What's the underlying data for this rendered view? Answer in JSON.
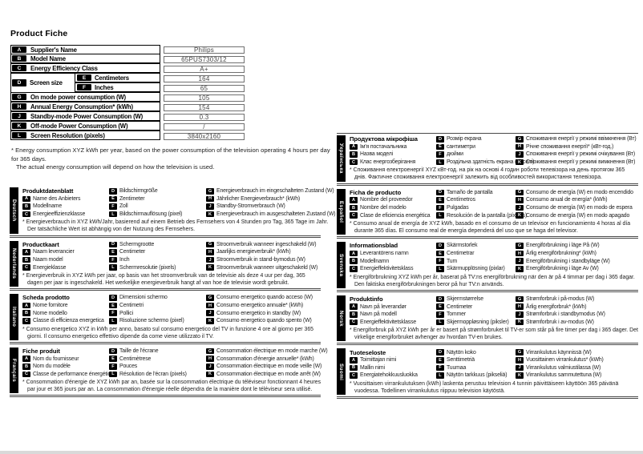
{
  "page_title": "Product Fiche",
  "fiche_table": {
    "rows": [
      {
        "key": "A",
        "label": "Supplier's Name",
        "value": "Philips"
      },
      {
        "key": "B",
        "label": "Model Name",
        "value": "65PUS7303/12"
      },
      {
        "key": "C",
        "label": "Energy Efficiency Class",
        "value": "A+"
      },
      {
        "key": "D",
        "label": "Screen size",
        "sub": [
          {
            "key": "E",
            "label": "Centimeters",
            "value": "164"
          },
          {
            "key": "F",
            "label": "Inches",
            "value": "65"
          }
        ]
      },
      {
        "key": "G",
        "label": "On mode power consumption (W)",
        "value": "105"
      },
      {
        "key": "H",
        "label": "Annual Energy Consumption* (kWh)",
        "value": "154"
      },
      {
        "key": "J",
        "label": "Standby-mode Power Consumption (W)",
        "value": "0.3"
      },
      {
        "key": "K",
        "label": "Off-mode Power Consumption (W)",
        "value": "/"
      },
      {
        "key": "L",
        "label": "Screen Resolution (pixels)",
        "value": "3840x2160"
      }
    ]
  },
  "fiche_footnote": {
    "line1": "* Energy consumption XYZ kWh per year, based on the power consumption of the television operating 4 hours per day for 365 days.",
    "line2": "The actual energy consumption will depend on how the television is used."
  },
  "languages": [
    {
      "name": "Deutsch",
      "column": "left",
      "title": "Produktdatenblatt",
      "col1": [
        {
          "k": "A",
          "t": "Name des Anbieters"
        },
        {
          "k": "B",
          "t": "Modellname"
        },
        {
          "k": "C",
          "t": "Energieeffizienzklasse"
        }
      ],
      "col2": [
        {
          "k": "D",
          "t": "Bildschirmgröße"
        },
        {
          "k": "E",
          "t": "Zentimeter"
        },
        {
          "k": "F",
          "t": "Zoll"
        },
        {
          "k": "L",
          "t": "Bildschirmauflösung (pixel)"
        }
      ],
      "col3": [
        {
          "k": "G",
          "t": "Energieverbrauch im eingeschalteten Zustand (W)"
        },
        {
          "k": "H",
          "t": "Jährlicher Energieverbrauch* (kWh)"
        },
        {
          "k": "J",
          "t": "Standby-Stromverbrauch (W)"
        },
        {
          "k": "K",
          "t": "Energieverbrauch im ausgeschalteten Zustand (W)"
        }
      ],
      "footnote": "* Energieverbrauch in XYZ kWh/Jahr, basierend auf einem Betrieb des Fernsehers von 4 Stunden pro Tag, 365 Tage im Jahr. Der tatsächliche Wert ist abhängig von der Nutzung des Fernsehers."
    },
    {
      "name": "Nederlands",
      "column": "left",
      "title": "Productkaart",
      "col1": [
        {
          "k": "A",
          "t": "Naam leverancier"
        },
        {
          "k": "B",
          "t": "Naam model"
        },
        {
          "k": "C",
          "t": "Energieklasse"
        }
      ],
      "col2": [
        {
          "k": "D",
          "t": "Schermgrootte"
        },
        {
          "k": "E",
          "t": "Centimeter"
        },
        {
          "k": "F",
          "t": "Inch"
        },
        {
          "k": "L",
          "t": "Schermresolutie (pixels)"
        }
      ],
      "col3": [
        {
          "k": "G",
          "t": "Stroomverbruik wanneer ingeschakeld (W)"
        },
        {
          "k": "H",
          "t": "Jaarlijks energieverbruik* (kWh)"
        },
        {
          "k": "J",
          "t": "Stroomverbruik in stand-bymodus (W)"
        },
        {
          "k": "K",
          "t": "Stroomverbruik wanneer uitgeschakeld (W)"
        }
      ],
      "footnote": "* Energieverbruik in XYZ kWh per jaar, op basis van het stroomverbruik van de televisie als deze 4 uur per dag, 365 dagen per jaar is ingeschakeld. Het werkelijke energieverbruik hangt af van hoe de televisie wordt gebruikt."
    },
    {
      "name": "Italiano",
      "column": "left",
      "title": "Scheda prodotto",
      "col1": [
        {
          "k": "A",
          "t": "Nome fornitore"
        },
        {
          "k": "B",
          "t": "Nome modello"
        },
        {
          "k": "C",
          "t": "Classe di efficienza energetica"
        }
      ],
      "col2": [
        {
          "k": "D",
          "t": "Dimensioni schermo"
        },
        {
          "k": "E",
          "t": "Centimetri"
        },
        {
          "k": "F",
          "t": "Pollici"
        },
        {
          "k": "L",
          "t": "Risoluzione schermo (pixel)"
        }
      ],
      "col3": [
        {
          "k": "G",
          "t": "Consumo energetico quando acceso (W)"
        },
        {
          "k": "H",
          "t": "Consumo energetico annuale* (kWh)"
        },
        {
          "k": "J",
          "t": "Consumo energetico in standby (W)"
        },
        {
          "k": "K",
          "t": "Consumo energetico quando spento (W)"
        }
      ],
      "footnote": "* Consumo energetico XYZ in kWh per anno, basato sul consumo energetico del TV in funzione 4 ore al giorno per 365 giorni. Il consumo energetico effettivo dipende da come viene utilizzato il TV."
    },
    {
      "name": "Français",
      "column": "left",
      "title": "Fiche produit",
      "col1": [
        {
          "k": "A",
          "t": "Nom du fournisseur"
        },
        {
          "k": "B",
          "t": "Nom du modèle"
        },
        {
          "k": "C",
          "t": "Classe de performance énergétique"
        }
      ],
      "col2": [
        {
          "k": "D",
          "t": "Taille de l'écrane"
        },
        {
          "k": "E",
          "t": "Centimètrese"
        },
        {
          "k": "F",
          "t": "Pouces"
        },
        {
          "k": "L",
          "t": "Résolution de l'écran (pixels)"
        }
      ],
      "col3": [
        {
          "k": "G",
          "t": "Consommation électrique en mode marche (W)"
        },
        {
          "k": "H",
          "t": "Consommation d'énergie annuelle* (kWh)"
        },
        {
          "k": "J",
          "t": "Consommation électrique en mode veille (W)"
        },
        {
          "k": "K",
          "t": "Consommation électrique en mode arrêt (W)"
        }
      ],
      "footnote": "* Consommation d'énergie de XYZ kWh par an, basée sur la consommation électrique du téléviseur fonctionnant 4 heures par jour et 365 jours par an. La consommation d'énergie réelle dépendra de la manière dont le téléviseur sera utilisé."
    },
    {
      "name": "Українська",
      "column": "right",
      "title": "Продуктова мікрофіша",
      "col1": [
        {
          "k": "A",
          "t": "Ім'я постачальника"
        },
        {
          "k": "B",
          "t": "Назва моделі"
        },
        {
          "k": "C",
          "t": "Клас енергозберігання"
        }
      ],
      "col2": [
        {
          "k": "D",
          "t": "Розмір екрана"
        },
        {
          "k": "E",
          "t": "сантиметри"
        },
        {
          "k": "F",
          "t": "дюйми"
        },
        {
          "k": "L",
          "t": "Роздільна здатність екрана (пікселі)"
        }
      ],
      "col3": [
        {
          "k": "G",
          "t": "Споживання енергії у режимі ввімкнення (Вт)"
        },
        {
          "k": "H",
          "t": "Річне споживання енергії* (кВт-год.)"
        },
        {
          "k": "J",
          "t": "Споживання енергії у режимі очікування (Вт)"
        },
        {
          "k": "K",
          "t": "Споживання енергії у режимі вимкнення (Вт)"
        }
      ],
      "footnote": "* Споживання електроенергії XYZ кВт-год. на рік на основі 4 годин роботи телевізора на день протягом 365 днів. Фактичне споживання електроенергії залежить від особливостей використання телевізора."
    },
    {
      "name": "Español",
      "column": "right",
      "title": "Ficha de producto",
      "col1": [
        {
          "k": "A",
          "t": "Nombre del proveedor"
        },
        {
          "k": "B",
          "t": "Nombre del modelo"
        },
        {
          "k": "C",
          "t": "Clase de eficiencia energética"
        }
      ],
      "col2": [
        {
          "k": "D",
          "t": "Tamaño de pantalla"
        },
        {
          "k": "E",
          "t": "Centímetros"
        },
        {
          "k": "F",
          "t": "Pulgadas"
        },
        {
          "k": "L",
          "t": "Resolución de la pantalla (píxeles)"
        }
      ],
      "col3": [
        {
          "k": "G",
          "t": "Consumo de energía (W) en modo encendido"
        },
        {
          "k": "H",
          "t": "Consumo anual de energía* (kWh)"
        },
        {
          "k": "J",
          "t": "Consumo de energía (W) en modo de espera"
        },
        {
          "k": "K",
          "t": "Consumo de energía (W) en modo apagado"
        }
      ],
      "footnote": "* Consumo anual de energía de XYZ kWh, basado en el consumo de un televisor en funcionamiento 4 horas al día durante 365 días. El consumo real de energía dependerá del uso que se haga del televisor."
    },
    {
      "name": "Svenska",
      "column": "right",
      "title": "Informationsblad",
      "col1": [
        {
          "k": "A",
          "t": "Leverantörens namn"
        },
        {
          "k": "B",
          "t": "Modellnamn"
        },
        {
          "k": "C",
          "t": "Energieffektivitetsklass"
        }
      ],
      "col2": [
        {
          "k": "D",
          "t": "Skärmstorlek"
        },
        {
          "k": "E",
          "t": "Centimetrar"
        },
        {
          "k": "F",
          "t": "Tum"
        },
        {
          "k": "L",
          "t": "Skärmupplösning (pixlar)"
        }
      ],
      "col3": [
        {
          "k": "G",
          "t": "Energiförbrukning i läge På (W)"
        },
        {
          "k": "H",
          "t": "Årlig energiförbrukning* (kWh)"
        },
        {
          "k": "J",
          "t": "Energiförbrukning i standbyläge (W)"
        },
        {
          "k": "K",
          "t": "Energiförbrukning i läge Av (W)"
        }
      ],
      "footnote": "* Energiförbrukning XYZ kWh per år, baserat på TV:ns energiförbrukning när den är på 4 timmar per dag i 365 dagar. Den faktiska energiförbrukningen beror på hur TV:n används."
    },
    {
      "name": "Norsk",
      "column": "right",
      "title": "Produktinfo",
      "col1": [
        {
          "k": "A",
          "t": "Navn på leverandør"
        },
        {
          "k": "B",
          "t": "Navn på modell"
        },
        {
          "k": "C",
          "t": "Energieffektivitetsklasse"
        }
      ],
      "col2": [
        {
          "k": "D",
          "t": "Skjermstørrelse"
        },
        {
          "k": "E",
          "t": "Centimeter"
        },
        {
          "k": "F",
          "t": "Tommer"
        },
        {
          "k": "L",
          "t": "Skjermoppløsning (piksler)"
        }
      ],
      "col3": [
        {
          "k": "G",
          "t": "Strømforbruk i på-modus (W)"
        },
        {
          "k": "H",
          "t": "Årlig energiforbruk* (kWh)"
        },
        {
          "k": "J",
          "t": "Strømforbruk i standbymodus (W)"
        },
        {
          "k": "K",
          "t": "Strømforbruk i av-modus (W)"
        }
      ],
      "footnote": "* Energiforbruk på XYZ kWh per år er basert på strømforbruket til TV-er som står på fire timer per dag i 365 dager. Det virkelige energiforbruket avhenger av hvordan TV-en brukes."
    },
    {
      "name": "Suomi",
      "column": "right",
      "title": "Tuoteseloste",
      "col1": [
        {
          "k": "A",
          "t": "Toimittajan nimi"
        },
        {
          "k": "B",
          "t": "Mallin nimi"
        },
        {
          "k": "C",
          "t": "Energiatehokkuusluokka"
        }
      ],
      "col2": [
        {
          "k": "D",
          "t": "Näytön koko"
        },
        {
          "k": "E",
          "t": "Senttimetriä"
        },
        {
          "k": "F",
          "t": "Tuumaa"
        },
        {
          "k": "L",
          "t": "Näytön tarkkuus (pikseliä)"
        }
      ],
      "col3": [
        {
          "k": "G",
          "t": "Virrankulutus käynnissä (W)"
        },
        {
          "k": "H",
          "t": "Vuosittainen virrankulutus* (kWh)"
        },
        {
          "k": "J",
          "t": "Virrankulutus valmiustilassa (W)"
        },
        {
          "k": "K",
          "t": "Virrankulutus sammutettuna (W)"
        }
      ],
      "footnote": "* Vuosittaisen virrankulutuksen (kWh) laskenta perustuu television 4 tunnin päivittäiseen käyttöön 365 päivänä vuodessa. Todellinen virrankulutus riippuu television käytöstä."
    }
  ]
}
